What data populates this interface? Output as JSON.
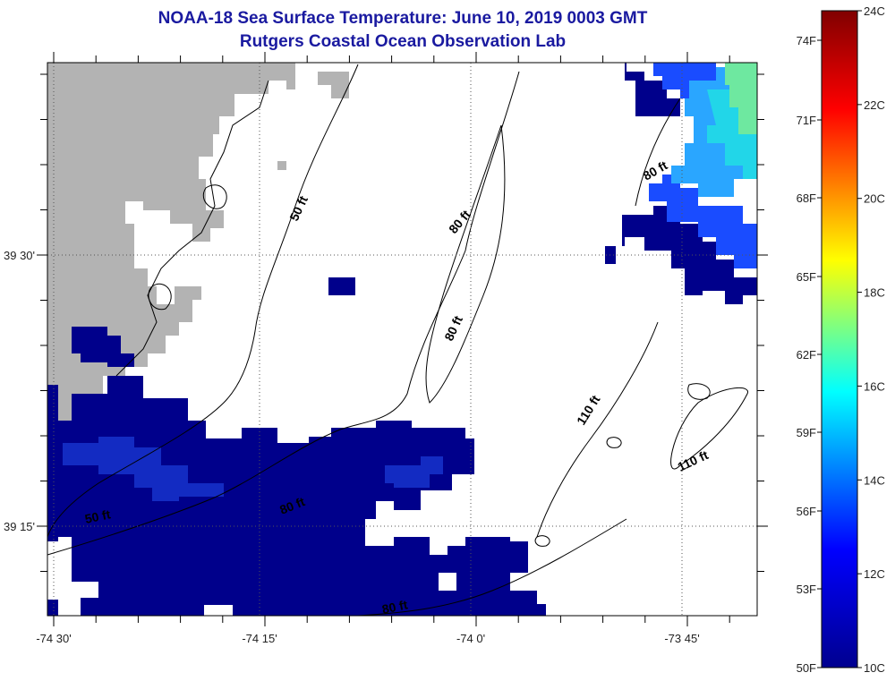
{
  "title": "NOAA-18 Sea Surface Temperature:  June 10, 2019 0003 GMT",
  "subtitle": "Rutgers Coastal Ocean Observation Lab",
  "x_ticks": [
    "-74 30'",
    "-74 15'",
    "-74 0'",
    "-73 45'"
  ],
  "y_ticks": [
    "39 30'",
    "39 15'"
  ],
  "contour_labels": [
    "50 ft",
    "80 ft",
    "80 ft",
    "80 ft",
    "110 ft",
    "110 ft",
    "50 ft",
    "80 ft",
    "80 ft"
  ],
  "colorbar": {
    "celsius": [
      "24C",
      "22C",
      "20C",
      "18C",
      "16C",
      "14C",
      "12C",
      "10C"
    ],
    "fahrenheit": [
      "74F",
      "71F",
      "68F",
      "65F",
      "62F",
      "59F",
      "56F",
      "53F",
      "50F"
    ],
    "stops": [
      "#00008f",
      "#0000ff",
      "#00ffff",
      "#ffff00",
      "#ff0000",
      "#800000"
    ]
  },
  "colors": {
    "title": "#1a1aa0",
    "land": "#b3b3b3",
    "sst_dark": "#00008b",
    "sst_mid": "#1528c8",
    "sst_light": "#2aa6ff",
    "sst_cyan": "#22d6e8",
    "sst_green": "#6ee8a0"
  }
}
